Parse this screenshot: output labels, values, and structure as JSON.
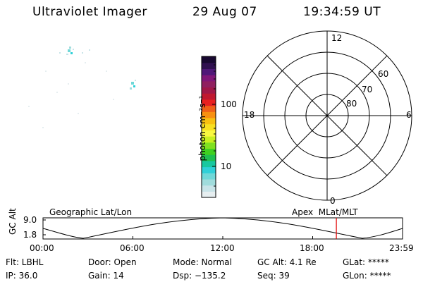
{
  "header": {
    "instrument": "Ultraviolet Imager",
    "date": "29 Aug 07",
    "time": "19:34:59 UT"
  },
  "colorbar": {
    "unit_label": "photon cm⁻²s⁻¹",
    "tick_labels": [
      "100",
      "10"
    ],
    "scale": "log",
    "colors": [
      "#e6eef0",
      "#c8e4e8",
      "#a0dcdc",
      "#70d8d8",
      "#30d0d8",
      "#18c8a0",
      "#20c050",
      "#40d020",
      "#80e020",
      "#c8f020",
      "#f8f840",
      "#f8e020",
      "#f8c010",
      "#f89010",
      "#f06018",
      "#e82020",
      "#c01830",
      "#a01848",
      "#902060",
      "#801878",
      "#501878",
      "#301050",
      "#180830"
    ]
  },
  "polar_plot": {
    "clock_labels": [
      "12",
      "18",
      "6",
      "0"
    ],
    "lat_labels": [
      "60",
      "70",
      "80"
    ]
  },
  "timeline": {
    "ylabel": "GC Alt",
    "ytick_labels": [
      "9.0",
      "1.8"
    ],
    "left_title": "Geographic Lat/Lon",
    "right_title": "Apex  MLat/MLT",
    "xtick_labels": [
      "00:00",
      "06:00",
      "12:00",
      "18:00",
      "23:59"
    ],
    "current_time_marker": "19:34:59",
    "marker_color": "#e00000"
  },
  "info": {
    "flt": "Flt: LBHL",
    "ip": "IP: 36.0",
    "door": "Door: Open",
    "gain": "Gain: 14",
    "mode": "Mode: Normal",
    "dsp": "Dsp: −135.2",
    "gc_alt": "GC Alt: 4.1 Re",
    "seq": "Seq: 39",
    "glat": "GLat: *****",
    "glon": "GLon: *****"
  }
}
